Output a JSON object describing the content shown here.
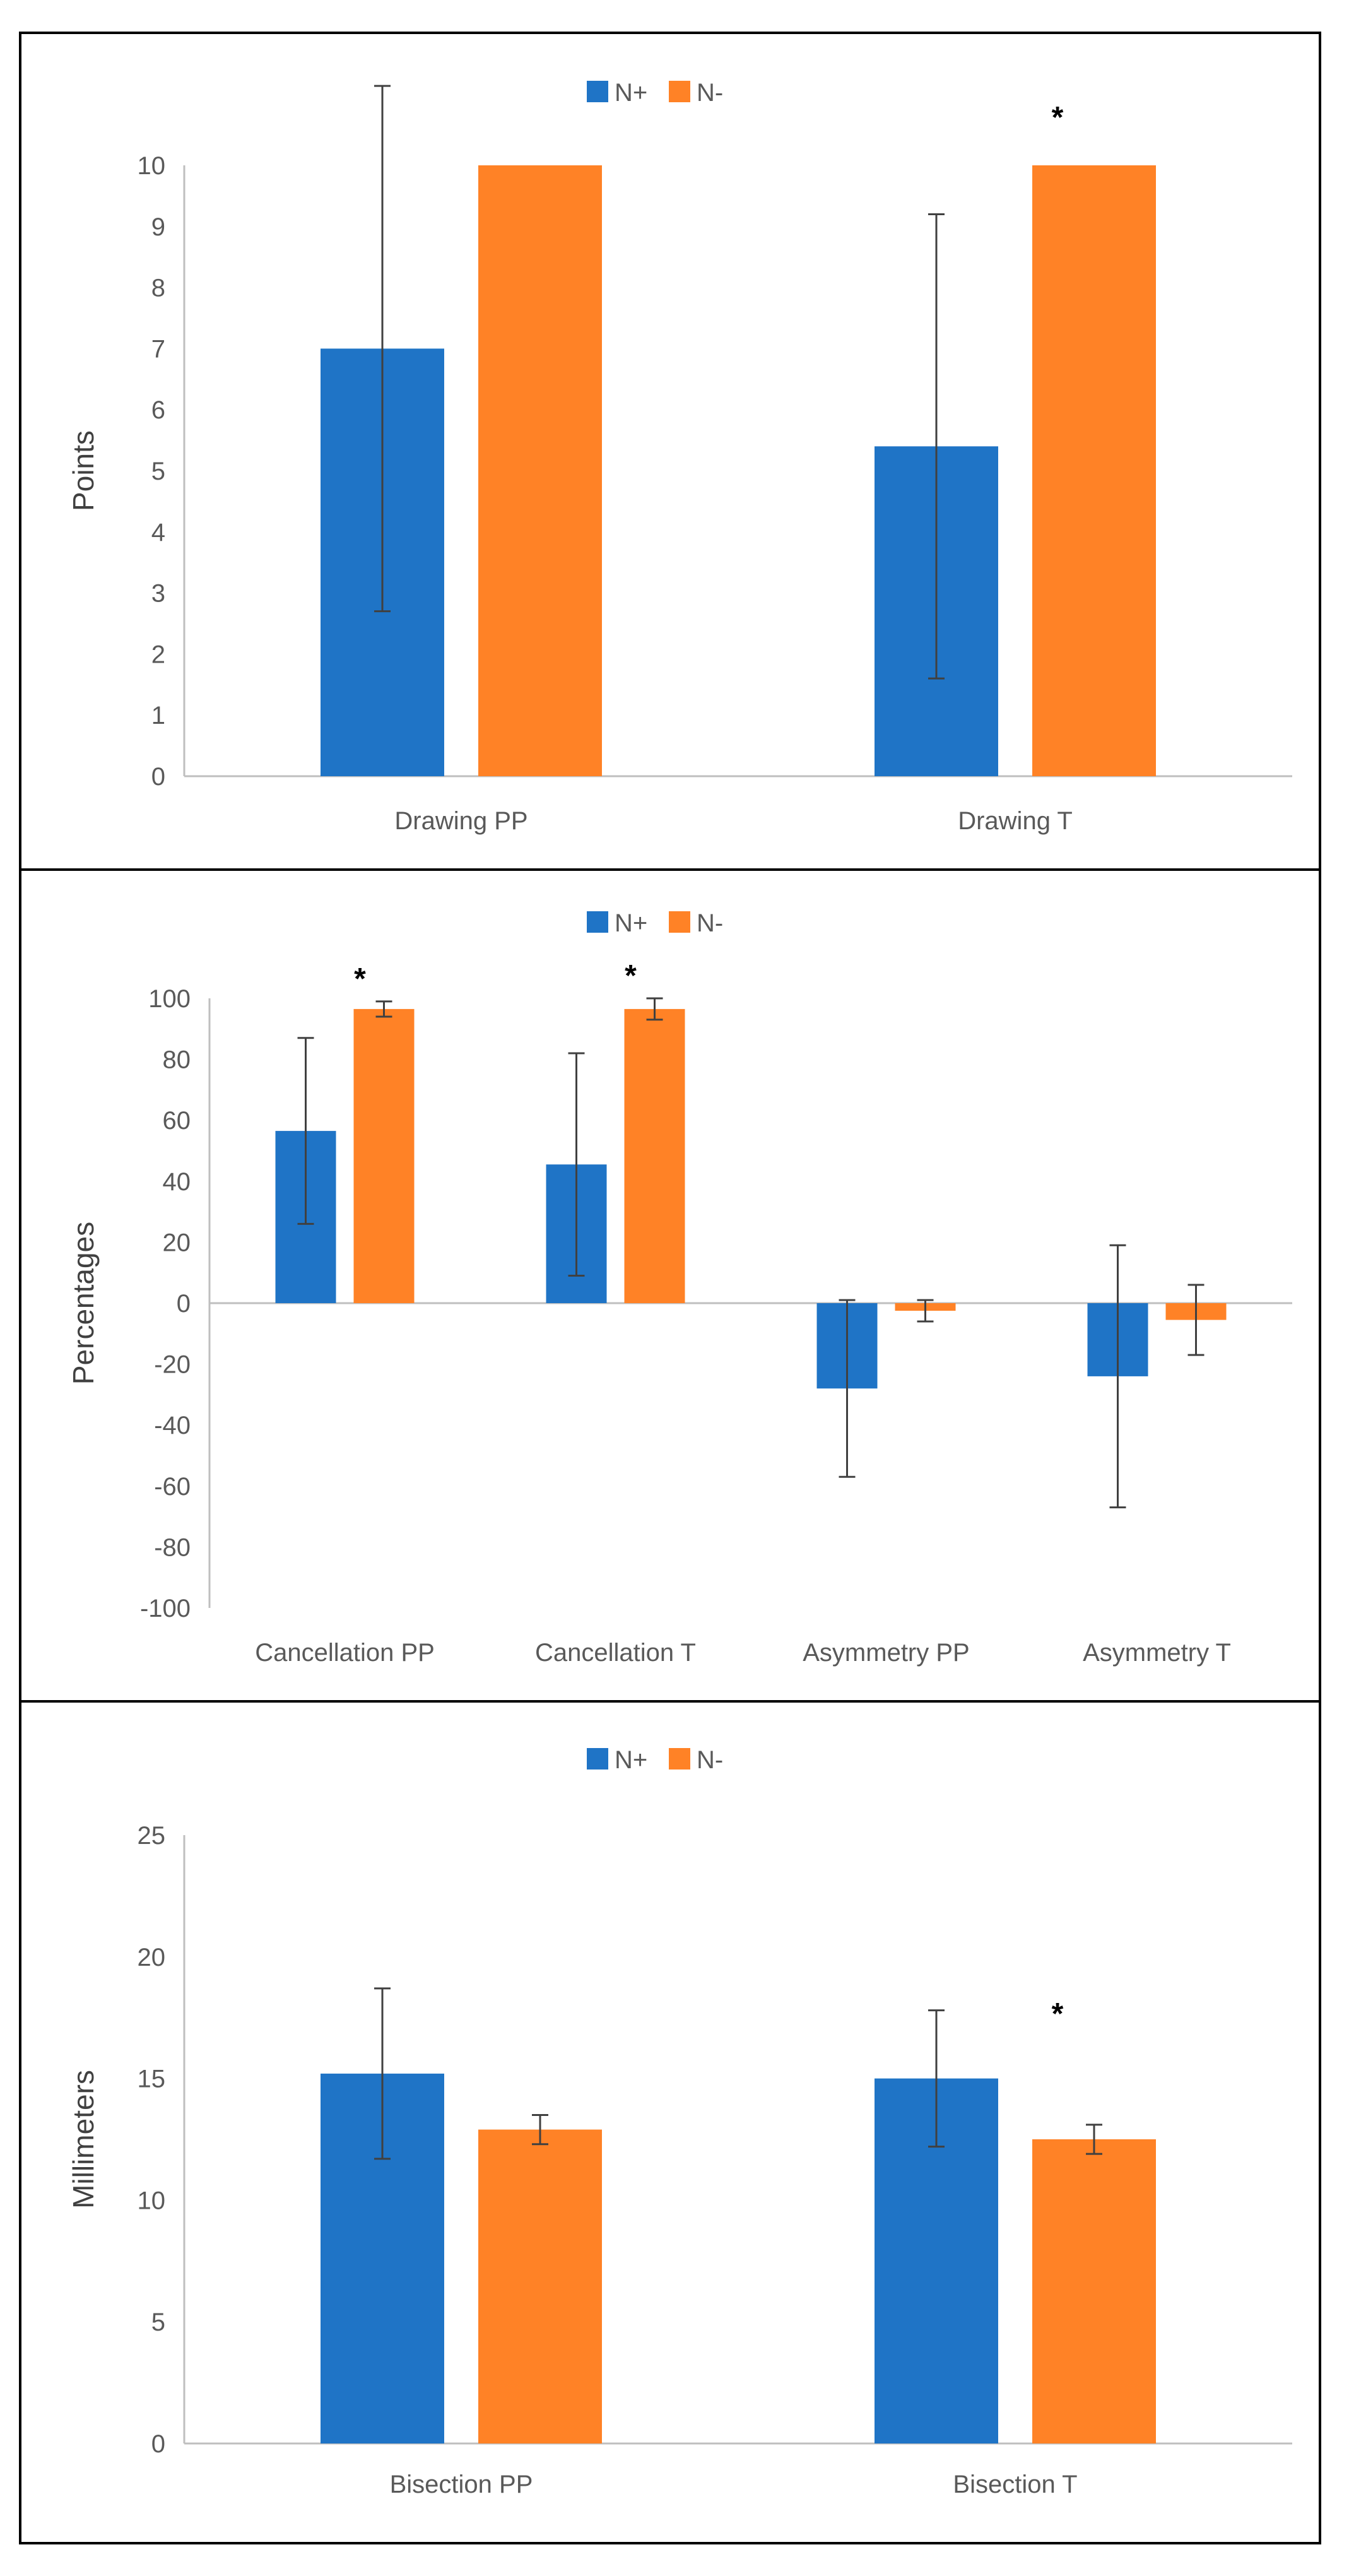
{
  "legend": {
    "series": [
      {
        "name": "N+",
        "color": "#1F74C6"
      },
      {
        "name": "N-",
        "color": "#FF8226"
      }
    ]
  },
  "colors": {
    "axis": "#BFBFBF",
    "error_bar": "#404040",
    "text": "#595959"
  },
  "chart_data": [
    {
      "type": "bar",
      "ylabel": "Points",
      "ylim": [
        0,
        10
      ],
      "yticks": [
        0,
        1,
        2,
        3,
        4,
        5,
        6,
        7,
        8,
        9,
        10
      ],
      "categories": [
        "Drawing PP",
        "Drawing T"
      ],
      "series": [
        {
          "name": "N+",
          "values": [
            7.0,
            5.4
          ],
          "error": [
            4.3,
            3.8
          ]
        },
        {
          "name": "N-",
          "values": [
            10.0,
            10.0
          ],
          "error": [
            0,
            0
          ]
        }
      ],
      "significance": [
        {
          "category": "Drawing T",
          "series": "N-",
          "label": "*"
        }
      ]
    },
    {
      "type": "bar",
      "ylabel": "Percentages",
      "ylim": [
        -100,
        100
      ],
      "yticks": [
        -100,
        -80,
        -60,
        -40,
        -20,
        0,
        20,
        40,
        60,
        80,
        100
      ],
      "categories": [
        "Cancellation PP",
        "Cancellation T",
        "Asymmetry PP",
        "Asymmetry T"
      ],
      "series": [
        {
          "name": "N+",
          "values": [
            56.5,
            45.5,
            -28,
            -24
          ],
          "error": [
            30.5,
            36.5,
            29,
            43
          ]
        },
        {
          "name": "N-",
          "values": [
            96.5,
            96.5,
            -2.5,
            -5.5
          ],
          "error": [
            2.5,
            3.5,
            3.5,
            11.5
          ]
        }
      ],
      "significance": [
        {
          "category": "Cancellation PP",
          "series": "N-",
          "label": "*"
        },
        {
          "category": "Cancellation T",
          "series": "N-",
          "label": "*"
        }
      ]
    },
    {
      "type": "bar",
      "ylabel": "Millimeters",
      "ylim": [
        0,
        25
      ],
      "yticks": [
        0,
        5,
        10,
        15,
        20,
        25
      ],
      "categories": [
        "Bisection PP",
        "Bisection T"
      ],
      "series": [
        {
          "name": "N+",
          "values": [
            15.2,
            15.0
          ],
          "error": [
            3.5,
            2.8
          ]
        },
        {
          "name": "N-",
          "values": [
            12.9,
            12.5
          ],
          "error": [
            0.6,
            0.6
          ]
        }
      ],
      "significance": [
        {
          "category": "Bisection T",
          "series": "N-",
          "label": "*"
        }
      ]
    }
  ]
}
